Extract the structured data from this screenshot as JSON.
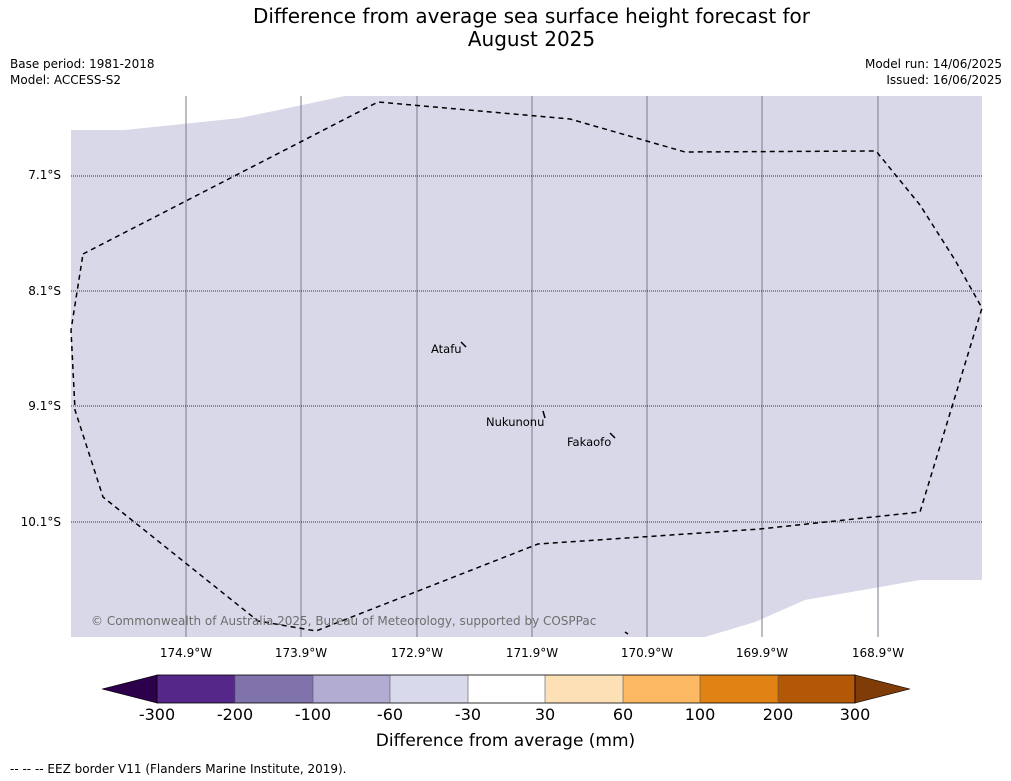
{
  "title_line1": "Difference from average sea surface height forecast for",
  "title_line2": "August 2025",
  "base_period": "Base period: 1981-2018",
  "model": "Model: ACCESS-S2",
  "model_run": "Model run: 14/06/2025",
  "issued": "Issued: 16/06/2025",
  "map": {
    "latitude_labels": [
      "7.1°S",
      "8.1°S",
      "9.1°S",
      "10.1°S"
    ],
    "longitude_labels": [
      "174.9°W",
      "173.9°W",
      "172.9°W",
      "171.9°W",
      "170.9°W",
      "169.9°W",
      "168.9°W"
    ],
    "islands": [
      "Atafu",
      "Nukunonu",
      "Fakaofo"
    ],
    "copyright": "© Commonwealth of Australia 2025, Bureau of Meteorology, supported by COSPPac",
    "fill_color": "#d8d8e9",
    "eez_border_style": "dashed"
  },
  "colorbar": {
    "ticks": [
      "-300",
      "-200",
      "-100",
      "-60",
      "-30",
      "30",
      "60",
      "100",
      "200",
      "300"
    ],
    "colors": [
      "#2d004b",
      "#542788",
      "#8073ac",
      "#b2abd2",
      "#d8daeb",
      "#ffffff",
      "#fee0b6",
      "#fdb863",
      "#e08214",
      "#b35806",
      "#7f3b08"
    ],
    "label": "Difference from average (mm)"
  },
  "legend": {
    "eez": "--  --  -- EEZ border V11 (Flanders Marine Institute, 2019)."
  }
}
